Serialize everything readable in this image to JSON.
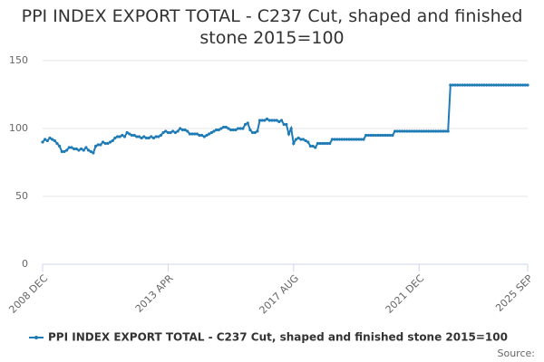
{
  "chart_data": {
    "type": "line",
    "title": "PPI INDEX EXPORT TOTAL - C237 Cut, shaped and finished stone 2015=100",
    "source": "Source:",
    "categories": [
      "2008 DEC",
      null,
      null,
      null,
      null,
      null,
      null,
      null,
      null,
      null,
      null,
      null,
      null,
      null,
      null,
      null,
      null,
      null,
      null,
      null,
      null,
      null,
      null,
      null,
      null,
      null,
      null,
      null,
      null,
      null,
      null,
      null,
      null,
      null,
      null,
      null,
      null,
      null,
      null,
      null,
      null,
      null,
      null,
      null,
      null,
      null,
      null,
      null,
      null,
      null,
      null,
      null,
      "2013 APR",
      null,
      null,
      null,
      null,
      null,
      null,
      null,
      null,
      null,
      null,
      null,
      null,
      null,
      null,
      null,
      null,
      null,
      null,
      null,
      null,
      null,
      null,
      null,
      null,
      null,
      null,
      null,
      null,
      null,
      null,
      null,
      null,
      null,
      null,
      null,
      null,
      null,
      null,
      null,
      null,
      null,
      null,
      null,
      null,
      null,
      null,
      null,
      null,
      null,
      null,
      null,
      "2017 AUG",
      null,
      null,
      null,
      null,
      null,
      null,
      null,
      null,
      null,
      null,
      null,
      null,
      null,
      null,
      null,
      null,
      null,
      null,
      null,
      null,
      null,
      null,
      null,
      null,
      null,
      null,
      null,
      null,
      null,
      null,
      null,
      null,
      null,
      null,
      null,
      null,
      null,
      null,
      null,
      null,
      null,
      null,
      null,
      null,
      null,
      null,
      null,
      null,
      null,
      null,
      null,
      "2021 DEC",
      null,
      null,
      null,
      null,
      null,
      null,
      null,
      null,
      null,
      null,
      null,
      null,
      null,
      null,
      null,
      null,
      null,
      null,
      null,
      null,
      null,
      null,
      null,
      null,
      null,
      null,
      null,
      null,
      null,
      null,
      null,
      null,
      null,
      null,
      null,
      null,
      null,
      null,
      null,
      null,
      null,
      null,
      null,
      null,
      "2025 SEP"
    ],
    "series": [
      {
        "name": "PPI INDEX EXPORT TOTAL - C237 Cut, shaped and finished stone 2015=100",
        "color": "#1f7bb6",
        "values": [
          90,
          92,
          91,
          93,
          92,
          91,
          89,
          87,
          83,
          83,
          84,
          86,
          86,
          85,
          85,
          84,
          85,
          84,
          86,
          84,
          83,
          82,
          87,
          88,
          88,
          90,
          89,
          89,
          90,
          91,
          93,
          94,
          94,
          95,
          94,
          97,
          96,
          95,
          95,
          94,
          94,
          93,
          94,
          93,
          93,
          94,
          93,
          94,
          94,
          95,
          97,
          98,
          97,
          97,
          98,
          97,
          98,
          100,
          99,
          99,
          98,
          96,
          96,
          96,
          96,
          95,
          95,
          94,
          95,
          96,
          97,
          98,
          99,
          99,
          100,
          101,
          101,
          100,
          99,
          99,
          99,
          100,
          100,
          100,
          103,
          104,
          99,
          97,
          97,
          98,
          106,
          106,
          106,
          107,
          106,
          106,
          106,
          106,
          105,
          106,
          103,
          103,
          96,
          100,
          89,
          92,
          93,
          92,
          92,
          91,
          90,
          87,
          87,
          86,
          89,
          89,
          89,
          89,
          89,
          89,
          92,
          92,
          92,
          92,
          92,
          92,
          92,
          92,
          92,
          92,
          92,
          92,
          92,
          92,
          95,
          95,
          95,
          95,
          95,
          95,
          95,
          95,
          95,
          95,
          95,
          95,
          98,
          98,
          98,
          98,
          98,
          98,
          98,
          98,
          98,
          98,
          98,
          98,
          98,
          98,
          98,
          98,
          98,
          98,
          98,
          98,
          98,
          98,
          98,
          132,
          132,
          132,
          132,
          132,
          132,
          132,
          132,
          132,
          132,
          132,
          132,
          132,
          132,
          132,
          132,
          132,
          132,
          132,
          132,
          132,
          132,
          132,
          132,
          132,
          132,
          132,
          132,
          132,
          132,
          132,
          132,
          132
        ]
      }
    ],
    "ylim": [
      0,
      150
    ],
    "yticks": [
      0,
      50,
      100,
      150
    ],
    "grid": true
  }
}
